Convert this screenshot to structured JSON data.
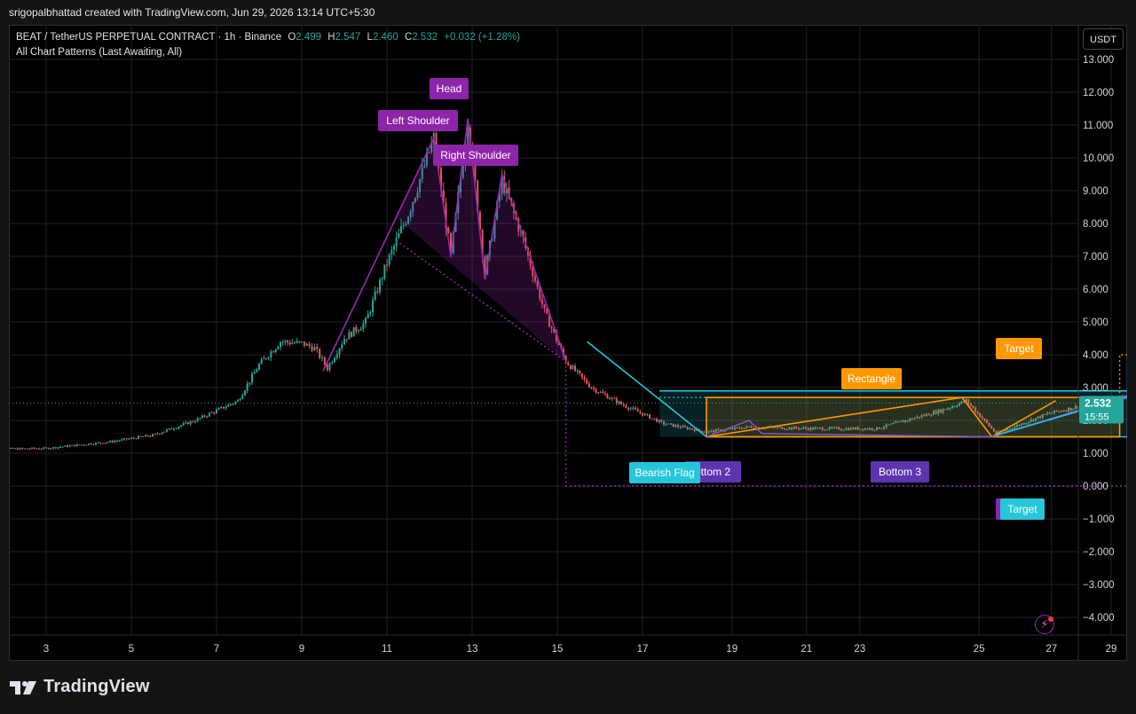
{
  "topbar": {
    "attribution": "srigopalbhattad created with TradingView.com, Jun 29, 2026 13:14 UTC+5:30"
  },
  "legend": {
    "symbol": "BEAT / TetherUS PERPETUAL CONTRACT · 1h · Binance",
    "o_label": "O",
    "o_value": "2.499",
    "h_label": "H",
    "h_value": "2.547",
    "l_label": "L",
    "l_value": "2.460",
    "c_label": "C",
    "c_value": "2.532",
    "change": "+0.032 (+1.28%)",
    "indicator": "All Chart Patterns (Last Awaiting, All)"
  },
  "currency_button": "USDT",
  "price_axis": {
    "ticks": [
      "13.000",
      "12.000",
      "11.000",
      "10.000",
      "9.000",
      "8.000",
      "7.000",
      "6.000",
      "5.000",
      "4.000",
      "3.000",
      "2.000",
      "1.000",
      "0.000",
      "−1.000",
      "−2.000",
      "−3.000",
      "−4.000"
    ],
    "last_price": "2.532",
    "countdown": "15:55"
  },
  "time_axis": {
    "ticks": [
      "3",
      "5",
      "7",
      "9",
      "11",
      "13",
      "15",
      "17",
      "19",
      "21",
      "23",
      "25",
      "27",
      "29"
    ]
  },
  "pattern_labels": {
    "head": "Head",
    "left_shoulder": "Left Shoulder",
    "right_shoulder": "Right Shoulder",
    "bearish_flag": "Bearish Flag",
    "bottom2": "ottom 2",
    "bottom3": "Bottom 3",
    "rectangle": "Rectangle",
    "target_orange": "Target",
    "target_cyan": "Target"
  },
  "colors": {
    "up": "#26a69a",
    "down": "#ef5350",
    "purple": "#9c27b0",
    "purple_label": "#8e24aa",
    "cyan": "#26c6da",
    "orange": "#ff9800",
    "bottom_label": "#5e35b1"
  },
  "chart_data": {
    "type": "candlestick",
    "title": "BEAT / TetherUS PERPETUAL CONTRACT · 1h · Binance",
    "x_ticks": [
      "3",
      "5",
      "7",
      "9",
      "11",
      "13",
      "15",
      "17",
      "19",
      "21",
      "23",
      "25",
      "27",
      "29"
    ],
    "ylim": [
      -4.3,
      13.6
    ],
    "last_price": 2.532,
    "close_path": [
      {
        "day": 1.5,
        "price": 1.12
      },
      {
        "day": 3.0,
        "price": 1.15
      },
      {
        "day": 4.5,
        "price": 1.35
      },
      {
        "day": 5.5,
        "price": 1.55
      },
      {
        "day": 6.5,
        "price": 2.0
      },
      {
        "day": 7.5,
        "price": 2.6
      },
      {
        "day": 8.0,
        "price": 3.7
      },
      {
        "day": 8.5,
        "price": 4.4
      },
      {
        "day": 9.0,
        "price": 4.35
      },
      {
        "day": 9.3,
        "price": 4.2
      },
      {
        "day": 9.6,
        "price": 3.6
      },
      {
        "day": 10.0,
        "price": 4.5
      },
      {
        "day": 10.5,
        "price": 5.0
      },
      {
        "day": 11.0,
        "price": 6.8
      },
      {
        "day": 11.5,
        "price": 8.3
      },
      {
        "day": 12.1,
        "price": 10.6
      },
      {
        "day": 12.5,
        "price": 7.0
      },
      {
        "day": 12.9,
        "price": 11.2
      },
      {
        "day": 13.3,
        "price": 6.5
      },
      {
        "day": 13.7,
        "price": 9.3
      },
      {
        "day": 14.2,
        "price": 7.5
      },
      {
        "day": 14.7,
        "price": 5.3
      },
      {
        "day": 15.2,
        "price": 3.8
      },
      {
        "day": 15.8,
        "price": 3.0
      },
      {
        "day": 16.5,
        "price": 2.5
      },
      {
        "day": 17.5,
        "price": 1.9
      },
      {
        "day": 18.5,
        "price": 1.65
      },
      {
        "day": 19.5,
        "price": 1.8
      },
      {
        "day": 21.0,
        "price": 1.75
      },
      {
        "day": 22.5,
        "price": 1.75
      },
      {
        "day": 24.0,
        "price": 2.3
      },
      {
        "day": 24.6,
        "price": 2.6
      },
      {
        "day": 25.3,
        "price": 1.6
      },
      {
        "day": 26.5,
        "price": 2.2
      },
      {
        "day": 27.5,
        "price": 2.5
      },
      {
        "day": 28.6,
        "price": 2.8
      },
      {
        "day": 29.4,
        "price": 2.532
      }
    ],
    "patterns": [
      {
        "name": "Head and Shoulders",
        "labels": [
          "Left Shoulder",
          "Head",
          "Right Shoulder"
        ],
        "target": 0.0
      },
      {
        "name": "Bearish Flag",
        "target": 0.0
      },
      {
        "name": "Rectangle",
        "top": 2.7,
        "bottom": 1.5,
        "target": 4.0
      },
      {
        "name": "Bottom",
        "labels": [
          "ottom 2",
          "Bottom 3"
        ]
      }
    ]
  }
}
